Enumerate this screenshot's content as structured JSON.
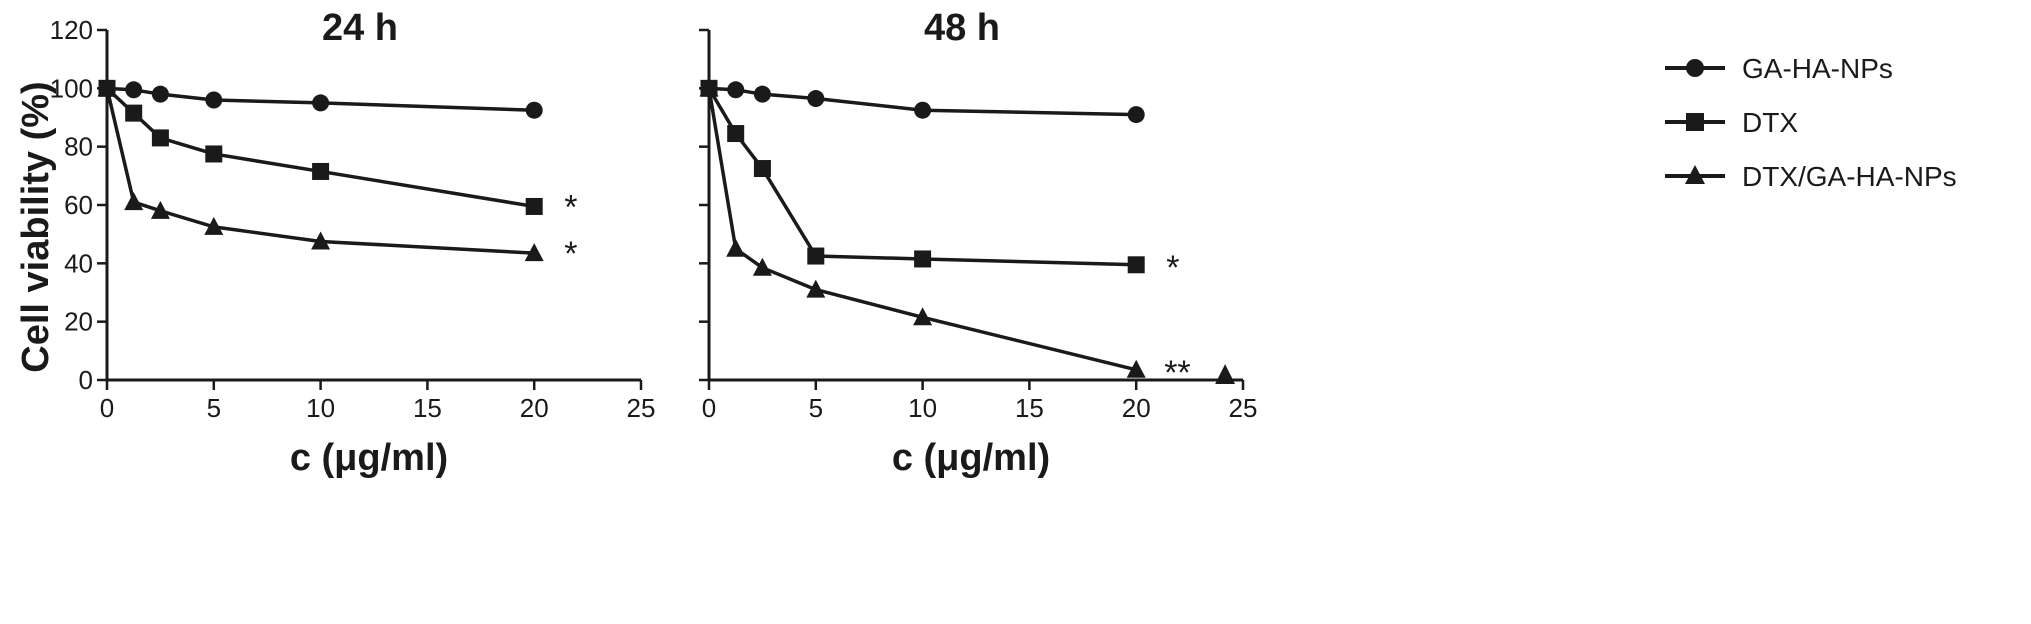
{
  "chart_data": [
    {
      "type": "line",
      "title": "24 h",
      "xlabel": "c (μg/ml)",
      "ylabel": "Cell viability (%)",
      "xlim": [
        0,
        25
      ],
      "ylim": [
        0,
        120
      ],
      "xticks": [
        "0",
        "5",
        "10",
        "15",
        "20",
        "25"
      ],
      "yticks": [
        "0",
        "20",
        "40",
        "60",
        "80",
        "100",
        "120"
      ],
      "grid": false,
      "series": [
        {
          "name": "GA-HA-NPs",
          "marker": "circle",
          "x": [
            0,
            1.25,
            2.5,
            5,
            10,
            20
          ],
          "y": [
            100,
            99.5,
            98,
            96,
            95,
            92.5
          ]
        },
        {
          "name": "DTX",
          "marker": "square",
          "x": [
            0,
            1.25,
            2.5,
            5,
            10,
            20
          ],
          "y": [
            100,
            91.5,
            83,
            77.5,
            71.5,
            59.5
          ]
        },
        {
          "name": "DTX/GA-HA-NPs",
          "marker": "triangle",
          "x": [
            0,
            1.25,
            2.5,
            5,
            10,
            20
          ],
          "y": [
            100,
            61,
            58,
            52.5,
            47.5,
            43.5
          ]
        }
      ],
      "annotations": [
        {
          "text": "*",
          "series": "DTX"
        },
        {
          "text": "*",
          "series": "DTX/GA-HA-NPs"
        }
      ]
    },
    {
      "type": "line",
      "title": "48 h",
      "xlabel": "c (μg/ml)",
      "ylabel": "",
      "xlim": [
        0,
        25
      ],
      "ylim": [
        0,
        120
      ],
      "xticks": [
        "0",
        "5",
        "10",
        "15",
        "20",
        "25"
      ],
      "yticks": [],
      "grid": false,
      "series": [
        {
          "name": "GA-HA-NPs",
          "marker": "circle",
          "x": [
            0,
            1.25,
            2.5,
            5,
            10,
            20
          ],
          "y": [
            100,
            99.5,
            98,
            96.5,
            92.5,
            91
          ]
        },
        {
          "name": "DTX",
          "marker": "square",
          "x": [
            0,
            1.25,
            2.5,
            5,
            10,
            20
          ],
          "y": [
            100,
            84.5,
            72.5,
            42.5,
            41.5,
            39.5
          ]
        },
        {
          "name": "DTX/GA-HA-NPs",
          "marker": "triangle",
          "x": [
            0,
            1.25,
            2.5,
            5,
            10,
            20
          ],
          "y": [
            100,
            45,
            38.5,
            31,
            21.5,
            3.5
          ]
        }
      ],
      "annotations": [
        {
          "text": "*",
          "series": "DTX"
        },
        {
          "text": "**",
          "series": "DTX/GA-HA-NPs"
        },
        {
          "text": "▲",
          "series": "DTX/GA-HA-NPs"
        }
      ]
    }
  ],
  "legend": {
    "placement": "right",
    "items": [
      {
        "label": "GA-HA-NPs",
        "marker": "circle"
      },
      {
        "label": "DTX",
        "marker": "square"
      },
      {
        "label": "DTX/GA-HA-NPs",
        "marker": "triangle"
      }
    ]
  },
  "colors": {
    "ink": "#1a1a1a",
    "background": "#ffffff"
  }
}
